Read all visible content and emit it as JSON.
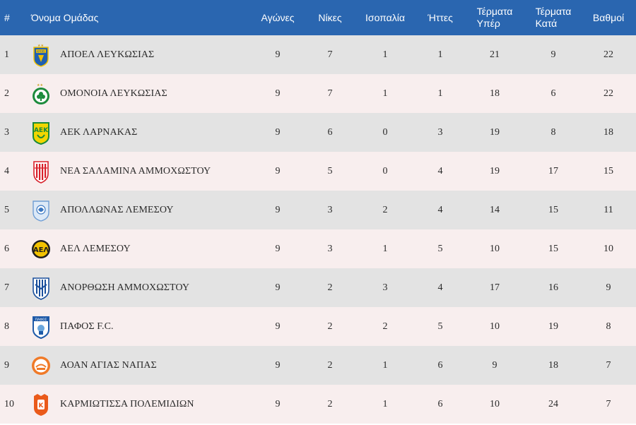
{
  "header": {
    "rank": "#",
    "team": "Όνομα Ομάδας",
    "played": "Αγώνες",
    "wins": "Νίκες",
    "draws": "Ισοπαλία",
    "losses": "Ήττες",
    "goals_for_1": "Τέρματα",
    "goals_for_2": "Υπέρ",
    "goals_against_1": "Τέρματα",
    "goals_against_2": "Κατά",
    "points": "Βαθμοί"
  },
  "rows": [
    {
      "rank": "1",
      "team": "ΑΠΟΕΛ ΛΕΥΚΩΣΙΑΣ",
      "logo": "apoel-crest-icon",
      "played": "9",
      "wins": "7",
      "draws": "1",
      "losses": "1",
      "gf": "21",
      "ga": "9",
      "pts": "22"
    },
    {
      "rank": "2",
      "team": "ΟΜΟΝΟΙΑ ΛΕΥΚΩΣΙΑΣ",
      "logo": "omonoia-crest-icon",
      "played": "9",
      "wins": "7",
      "draws": "1",
      "losses": "1",
      "gf": "18",
      "ga": "6",
      "pts": "22"
    },
    {
      "rank": "3",
      "team": "ΑΕΚ ΛΑΡΝΑΚΑΣ",
      "logo": "aek-crest-icon",
      "played": "9",
      "wins": "6",
      "draws": "0",
      "losses": "3",
      "gf": "19",
      "ga": "8",
      "pts": "18"
    },
    {
      "rank": "4",
      "team": "ΝΕΑ ΣΑΛΑΜΙΝΑ ΑΜΜΟΧΩΣΤΟΥ",
      "logo": "nea-salamina-crest-icon",
      "played": "9",
      "wins": "5",
      "draws": "0",
      "losses": "4",
      "gf": "19",
      "ga": "17",
      "pts": "15"
    },
    {
      "rank": "5",
      "team": "ΑΠΟΛΛΩΝΑΣ ΛΕΜΕΣΟΥ",
      "logo": "apollon-crest-icon",
      "played": "9",
      "wins": "3",
      "draws": "2",
      "losses": "4",
      "gf": "14",
      "ga": "15",
      "pts": "11"
    },
    {
      "rank": "6",
      "team": "ΑΕΛ ΛΕΜΕΣΟΥ",
      "logo": "ael-crest-icon",
      "played": "9",
      "wins": "3",
      "draws": "1",
      "losses": "5",
      "gf": "10",
      "ga": "15",
      "pts": "10"
    },
    {
      "rank": "7",
      "team": "ΑΝΟΡΘΩΣΗ ΑΜΜΟΧΩΣΤΟΥ",
      "logo": "anorthosis-crest-icon",
      "played": "9",
      "wins": "2",
      "draws": "3",
      "losses": "4",
      "gf": "17",
      "ga": "16",
      "pts": "9"
    },
    {
      "rank": "8",
      "team": "ΠΑΦΟΣ F.C.",
      "logo": "pafos-crest-icon",
      "played": "9",
      "wins": "2",
      "draws": "2",
      "losses": "5",
      "gf": "10",
      "ga": "19",
      "pts": "8"
    },
    {
      "rank": "9",
      "team": "ΑΟΑΝ ΑΓΙΑΣ ΝΑΠΑΣ",
      "logo": "aoan-crest-icon",
      "played": "9",
      "wins": "2",
      "draws": "1",
      "losses": "6",
      "gf": "9",
      "ga": "18",
      "pts": "7"
    },
    {
      "rank": "10",
      "team": "ΚΑΡΜΙΩΤΙΣΣΑ ΠΟΛΕΜΙΔΙΩΝ",
      "logo": "karmiotissa-crest-icon",
      "played": "9",
      "wins": "2",
      "draws": "1",
      "losses": "6",
      "gf": "10",
      "ga": "24",
      "pts": "7"
    }
  ],
  "colors": {
    "header_bg": "#2a66b0",
    "row_odd": "#e3e3e3",
    "row_even": "#f8eeee"
  }
}
